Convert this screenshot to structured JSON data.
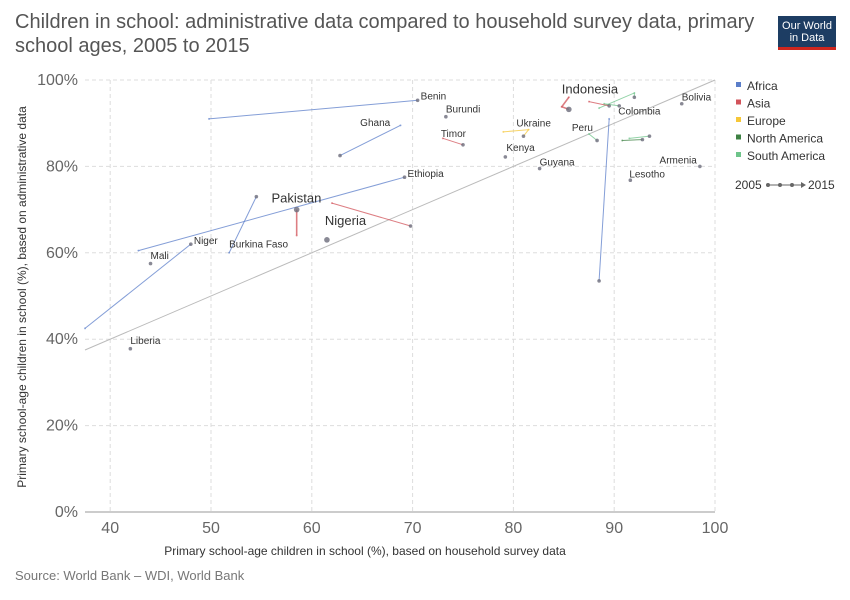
{
  "title": "Children in school: administrative data compared to household survey data, primary school ages, 2005 to 2015",
  "logo": {
    "line1": "Our World",
    "line2": "in Data"
  },
  "source": "Source: World Bank – WDI, World Bank",
  "colors": {
    "Africa": "#5b7ec9",
    "Asia": "#d2535a",
    "Europe": "#f6c738",
    "North America": "#3d8143",
    "South America": "#6ec48a"
  },
  "legend": {
    "regions": [
      "Africa",
      "Asia",
      "Europe",
      "North America",
      "South America"
    ],
    "time_start": "2005",
    "time_end": "2015"
  },
  "chart_data": {
    "type": "scatter",
    "xlabel": "Primary school-age children in school (%), based on household survey data",
    "ylabel": "Primary school-age children in school (%), based on administrative data",
    "xlim": [
      37.5,
      100
    ],
    "ylim": [
      0,
      100
    ],
    "xticks": [
      "40",
      "50",
      "60",
      "70",
      "80",
      "90",
      "100"
    ],
    "yticks": [
      "0%",
      "20%",
      "40%",
      "60%",
      "80%",
      "100%"
    ],
    "grid": true,
    "reference_line": {
      "x": [
        37.5,
        100
      ],
      "y": [
        37.5,
        100
      ]
    },
    "series": [
      {
        "name": "Benin",
        "region": "Africa",
        "points": [
          [
            49.8,
            91.0
          ],
          [
            70.5,
            95.3
          ]
        ],
        "label": true
      },
      {
        "name": "Burundi",
        "region": "Africa",
        "points": [
          [
            73.3,
            91.5
          ]
        ],
        "label": true
      },
      {
        "name": "Ghana",
        "region": "Africa",
        "points": [
          [
            68.8,
            89.5
          ],
          [
            62.8,
            82.5
          ]
        ],
        "label": true
      },
      {
        "name": "Timor",
        "region": "Asia",
        "points": [
          [
            73.0,
            86.5
          ],
          [
            75.0,
            85.0
          ]
        ],
        "label": true
      },
      {
        "name": "Ukraine",
        "region": "Europe",
        "points": [
          [
            79.0,
            88.0
          ],
          [
            81.5,
            88.5
          ],
          [
            81.0,
            87.0
          ]
        ],
        "label": true
      },
      {
        "name": "Indonesia",
        "region": "Asia",
        "points": [
          [
            85.5,
            96.0
          ],
          [
            84.8,
            93.8
          ],
          [
            85.5,
            93.2
          ]
        ],
        "label": true,
        "big": true
      },
      {
        "name": "Colombia",
        "region": "South America",
        "points": [
          [
            88.5,
            93.5
          ],
          [
            92.0,
            97.0
          ],
          [
            92.0,
            96.0
          ]
        ],
        "label": true
      },
      {
        "name": "Bolivia",
        "region": "South America",
        "points": [
          [
            96.7,
            94.5
          ]
        ],
        "label": true
      },
      {
        "name": "Peru",
        "region": "South America",
        "points": [
          [
            87.5,
            87.5
          ],
          [
            88.3,
            86.0
          ]
        ],
        "label": true
      },
      {
        "name": "Kenya",
        "region": "Africa",
        "points": [
          [
            79.2,
            82.2
          ]
        ],
        "label": true
      },
      {
        "name": "Guyana",
        "region": "South America",
        "points": [
          [
            82.6,
            79.5
          ]
        ],
        "label": true
      },
      {
        "name": "Armenia",
        "region": "Asia",
        "points": [
          [
            98.5,
            80.0
          ]
        ],
        "label": true
      },
      {
        "name": "Lesotho",
        "region": "Africa",
        "points": [
          [
            91.6,
            76.8
          ]
        ],
        "label": true
      },
      {
        "name": "Ethiopia",
        "region": "Africa",
        "points": [
          [
            42.8,
            60.5
          ],
          [
            69.2,
            77.5
          ]
        ],
        "label": true
      },
      {
        "name": "Pakistan",
        "region": "Asia",
        "points": [
          [
            58.5,
            64.0
          ],
          [
            58.5,
            70.0
          ]
        ],
        "label": true,
        "big": true
      },
      {
        "name": "Nigeria",
        "region": "Africa",
        "points": [
          [
            61.5,
            63.0
          ]
        ],
        "label": true,
        "big": true
      },
      {
        "name": "Niger",
        "region": "Africa",
        "points": [
          [
            37.5,
            42.5
          ],
          [
            48.0,
            62.0
          ]
        ],
        "label": true
      },
      {
        "name": "Mali",
        "region": "Africa",
        "points": [
          [
            44.0,
            57.5
          ]
        ],
        "label": true
      },
      {
        "name": "Burkina Faso",
        "region": "Africa",
        "points": [
          [
            51.8,
            60.0
          ],
          [
            54.5,
            73.0
          ]
        ],
        "label": true
      },
      {
        "name": "Liberia",
        "region": "Africa",
        "points": [
          [
            42.0,
            37.8
          ]
        ],
        "label": true
      },
      {
        "name": "",
        "region": "Asia",
        "points": [
          [
            62.0,
            71.5
          ],
          [
            69.8,
            66.2
          ]
        ],
        "label": false
      },
      {
        "name": "",
        "region": "Africa",
        "points": [
          [
            89.5,
            91.0
          ],
          [
            88.5,
            53.5
          ]
        ],
        "label": false
      },
      {
        "name": "",
        "region": "North America",
        "points": [
          [
            90.8,
            86.0
          ],
          [
            92.8,
            86.2
          ]
        ],
        "label": false
      },
      {
        "name": "",
        "region": "South America",
        "points": [
          [
            91.5,
            86.5
          ],
          [
            93.5,
            87.0
          ]
        ],
        "label": false
      },
      {
        "name": "",
        "region": "South America",
        "points": [
          [
            89.0,
            94.5
          ],
          [
            90.5,
            94.0
          ]
        ],
        "label": false
      },
      {
        "name": "",
        "region": "Asia",
        "points": [
          [
            87.5,
            95.0
          ],
          [
            89.5,
            94.0
          ]
        ],
        "label": false
      }
    ],
    "labels": [
      {
        "text": "Benin",
        "x": 70.8,
        "y": 95.5,
        "size": "small"
      },
      {
        "text": "Burundi",
        "x": 73.3,
        "y": 92.5,
        "size": "small"
      },
      {
        "text": "Ghana",
        "x": 64.8,
        "y": 89.3,
        "size": "small"
      },
      {
        "text": "Timor",
        "x": 72.8,
        "y": 86.8,
        "size": "small"
      },
      {
        "text": "Ukraine",
        "x": 80.3,
        "y": 89.2,
        "size": "small"
      },
      {
        "text": "Indonesia",
        "x": 84.8,
        "y": 96.9,
        "size": "big"
      },
      {
        "text": "Colombia",
        "x": 90.4,
        "y": 92.0,
        "size": "small"
      },
      {
        "text": "Bolivia",
        "x": 96.7,
        "y": 95.3,
        "size": "small"
      },
      {
        "text": "Peru",
        "x": 85.8,
        "y": 88.2,
        "size": "small"
      },
      {
        "text": "Kenya",
        "x": 79.3,
        "y": 83.6,
        "size": "small"
      },
      {
        "text": "Guyana",
        "x": 82.6,
        "y": 80.2,
        "size": "small"
      },
      {
        "text": "Armenia",
        "x": 94.5,
        "y": 80.7,
        "size": "small"
      },
      {
        "text": "Lesotho",
        "x": 91.5,
        "y": 77.4,
        "size": "small"
      },
      {
        "text": "Ethiopia",
        "x": 69.5,
        "y": 77.5,
        "size": "small"
      },
      {
        "text": "Pakistan",
        "x": 56.0,
        "y": 71.6,
        "size": "big"
      },
      {
        "text": "Nigeria",
        "x": 61.3,
        "y": 66.4,
        "size": "big"
      },
      {
        "text": "Niger",
        "x": 48.3,
        "y": 62.0,
        "size": "small"
      },
      {
        "text": "Mali",
        "x": 44.0,
        "y": 58.6,
        "size": "small"
      },
      {
        "text": "Burkina Faso",
        "x": 51.8,
        "y": 61.2,
        "size": "small"
      },
      {
        "text": "Liberia",
        "x": 42.0,
        "y": 38.9,
        "size": "small"
      }
    ]
  }
}
